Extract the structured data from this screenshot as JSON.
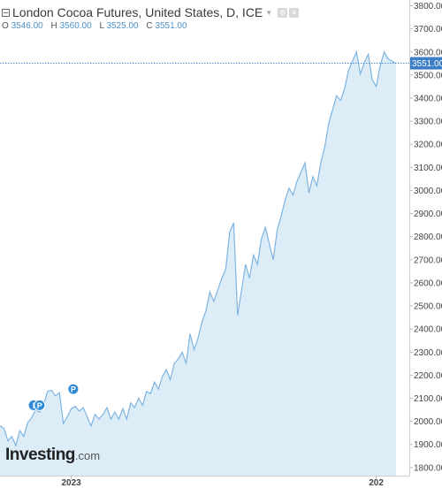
{
  "header": {
    "title": "London Cocoa Futures, United States, D, ICE",
    "caret_icon": "chevron-down-icon",
    "buttons": [
      "settings-icon",
      "close-icon"
    ],
    "ohlc": {
      "o_key": "O",
      "o": "3546.00",
      "h_key": "H",
      "h": "3560.00",
      "l_key": "L",
      "l": "3525.00",
      "c_key": "C",
      "c": "3551.00"
    }
  },
  "logo": {
    "main": "Investing",
    "suffix": ".com"
  },
  "colors": {
    "line": "#7fb4e0",
    "fill": "#dcedf8",
    "axis_text": "#444444",
    "current_label_bg": "#3c7fc7",
    "event_marker": "#2f8ad6"
  },
  "chart_data": {
    "type": "area",
    "ylim": [
      1765,
      3825
    ],
    "y_ticks": [
      "1800.00",
      "1900.00",
      "2000.00",
      "2100.00",
      "2200.00",
      "2300.00",
      "2400.00",
      "2500.00",
      "2600.00",
      "2700.00",
      "2800.00",
      "2900.00",
      "3000.00",
      "3100.00",
      "3200.00",
      "3300.00",
      "3400.00",
      "3500.00",
      "3600.00",
      "3700.00",
      "3800.00"
    ],
    "x_labels": [
      {
        "label": "2023",
        "x": 18
      },
      {
        "label": "202",
        "x": 95
      }
    ],
    "current_value": 3551.0,
    "current_label": "3551.00",
    "events": [
      {
        "label": "I",
        "x": 8.5,
        "y": 2070
      },
      {
        "label": "P",
        "x": 10,
        "y": 2070
      },
      {
        "label": "P",
        "x": 18.5,
        "y": 2140
      }
    ],
    "series": [
      {
        "x": [
          0,
          1,
          2,
          3,
          4,
          5,
          6,
          7,
          8,
          9,
          10,
          11,
          12,
          13,
          14,
          15,
          16,
          17,
          18,
          19,
          20,
          21,
          22,
          23,
          24,
          25,
          26,
          27,
          28,
          29,
          30,
          31,
          32,
          33,
          34,
          35,
          36,
          37,
          38,
          39,
          40,
          41,
          42,
          43,
          44,
          45,
          46,
          47,
          48,
          49,
          50,
          51,
          52,
          53,
          54,
          55,
          56,
          57,
          58,
          59,
          60,
          61,
          62,
          63,
          64,
          65,
          66,
          67,
          68,
          69,
          70,
          71,
          72,
          73,
          74,
          75,
          76,
          77,
          78,
          79,
          80,
          81,
          82,
          83,
          84,
          85,
          86,
          87,
          88,
          89,
          90,
          91,
          92,
          93,
          94,
          95,
          96,
          97,
          98,
          99,
          100
        ],
        "values": [
          1980,
          1970,
          1915,
          1935,
          1895,
          1960,
          1935,
          1995,
          2015,
          2050,
          2040,
          2070,
          2130,
          2135,
          2110,
          2125,
          1990,
          2020,
          2055,
          2065,
          2045,
          2060,
          2020,
          1980,
          2030,
          2010,
          2030,
          2060,
          2010,
          2040,
          2010,
          2055,
          2010,
          2080,
          2060,
          2100,
          2070,
          2130,
          2120,
          2170,
          2140,
          2195,
          2225,
          2180,
          2250,
          2270,
          2300,
          2250,
          2380,
          2310,
          2360,
          2430,
          2480,
          2560,
          2520,
          2570,
          2620,
          2660,
          2820,
          2860,
          2460,
          2570,
          2680,
          2620,
          2720,
          2680,
          2790,
          2840,
          2770,
          2700,
          2830,
          2890,
          2960,
          3010,
          2980,
          3040,
          3080,
          3120,
          2990,
          3060,
          3020,
          3120,
          3190,
          3290,
          3350,
          3410,
          3390,
          3440,
          3520,
          3560,
          3600,
          3505,
          3555,
          3590,
          3480,
          3450,
          3540,
          3600,
          3570,
          3560,
          3551
        ]
      }
    ]
  }
}
